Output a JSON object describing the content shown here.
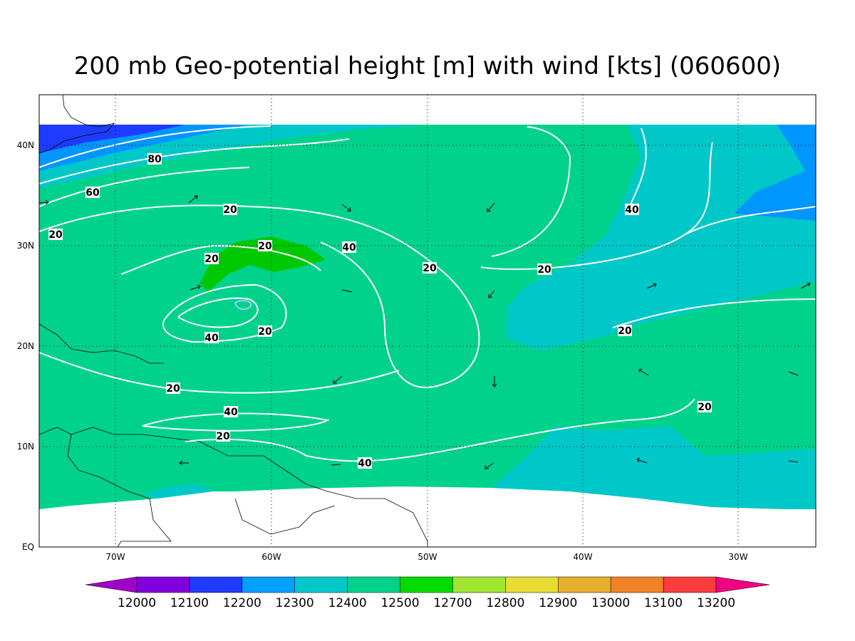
{
  "title": "200 mb Geo-potential height [m] with wind [kts] (060600)",
  "lat_labels": [
    "EQ",
    "10N",
    "20N",
    "30N",
    "40N"
  ],
  "lon_labels": [
    "70W",
    "60W",
    "50W",
    "40W",
    "30W"
  ],
  "contour_labels": [
    "80",
    "60",
    "20",
    "20",
    "20",
    "20",
    "40",
    "40",
    "20",
    "20",
    "20",
    "20",
    "40",
    "40",
    "20",
    "20",
    "40",
    "20"
  ],
  "colorbar": {
    "labels": [
      12000,
      12100,
      12200,
      12300,
      12400,
      12500,
      12700,
      12800,
      12900,
      13000,
      13100,
      13200
    ],
    "colors": [
      "#a000c8",
      "#8200dc",
      "#1e3cff",
      "#00a0ff",
      "#00c8c8",
      "#00d28c",
      "#00dc00",
      "#a0e632",
      "#e6dc32",
      "#e6af2d",
      "#f08228",
      "#fa3c3c",
      "#f00082"
    ]
  }
}
